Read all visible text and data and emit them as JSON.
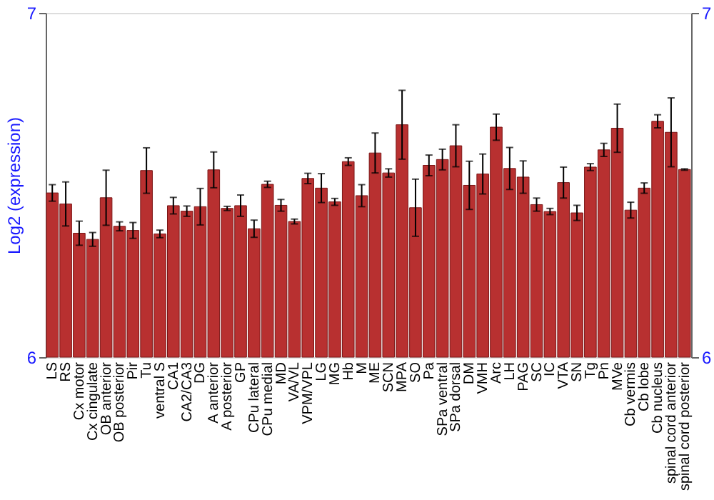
{
  "chart_data": {
    "type": "bar",
    "ylabel": "Log2 (expression)",
    "categories": [
      "LS",
      "RS",
      "Cx motor",
      "Cx cingulate",
      "OB anterior",
      "OB posterior",
      "Pir",
      "Tu",
      "ventral S",
      "CA1",
      "CA2/CA3",
      "DG",
      "A anterior",
      "A posterior",
      "GP",
      "CPu lateral",
      "CPu medial",
      "MD",
      "VA/VL",
      "VPM/VPL",
      "LG",
      "MG",
      "Hb",
      "M",
      "ME",
      "SCN",
      "MPA",
      "SO",
      "Pa",
      "SPa ventral",
      "SPa dorsal",
      "DM",
      "VMH",
      "Arc",
      "LH",
      "PAG",
      "SC",
      "IC",
      "VTA",
      "SN",
      "Tg",
      "Pn",
      "MVe",
      "Cb vermis",
      "Cb lobe",
      "Cb nucleus",
      "spinal cord anterior",
      "spinal cord posterior"
    ],
    "values": [
      6.477,
      6.445,
      6.36,
      6.342,
      6.463,
      6.38,
      6.368,
      6.542,
      6.358,
      6.44,
      6.424,
      6.437,
      6.544,
      6.432,
      6.44,
      6.373,
      6.502,
      6.441,
      6.394,
      6.519,
      6.491,
      6.451,
      6.568,
      6.469,
      6.593,
      6.535,
      6.675,
      6.434,
      6.557,
      6.574,
      6.614,
      6.499,
      6.532,
      6.668,
      6.548,
      6.523,
      6.443,
      6.423,
      6.507,
      6.419,
      6.552,
      6.602,
      6.665,
      6.427,
      6.491,
      6.685,
      6.653,
      6.545
    ],
    "errors": [
      0.024,
      0.064,
      0.035,
      0.02,
      0.08,
      0.013,
      0.023,
      0.066,
      0.011,
      0.024,
      0.015,
      0.053,
      0.052,
      0.006,
      0.031,
      0.025,
      0.009,
      0.017,
      0.007,
      0.015,
      0.042,
      0.01,
      0.011,
      0.032,
      0.058,
      0.012,
      0.1,
      0.083,
      0.03,
      0.03,
      0.061,
      0.07,
      0.058,
      0.038,
      0.061,
      0.047,
      0.019,
      0.009,
      0.045,
      0.022,
      0.01,
      0.019,
      0.07,
      0.023,
      0.015,
      0.019,
      0.1,
      0.002
    ],
    "color": "#b83030",
    "ylim": [
      6,
      7
    ],
    "yticks": [
      6,
      7
    ],
    "y2lim": [
      6,
      7
    ],
    "y2ticks": [
      6,
      7
    ]
  }
}
